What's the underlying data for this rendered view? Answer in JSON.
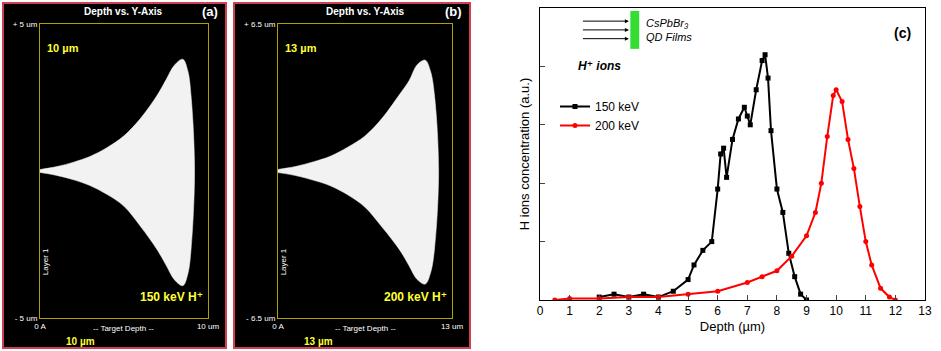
{
  "chart_data": [
    {
      "type": "trajectory",
      "panel": "(a)",
      "title": "Depth vs. Y-Axis",
      "scale_label": "10 µm",
      "ion_label": "150 keV H⁺",
      "layer_label": "Layer 1",
      "axis_label": "-- Target Depth --",
      "footer_label": "10 µm",
      "xlim": [
        0,
        10
      ],
      "ylim": [
        -5,
        5
      ],
      "xticks": [
        {
          "value": 0,
          "label": "0 A"
        },
        {
          "value": 10,
          "label": "10 um"
        }
      ],
      "yticks": [
        {
          "value": -5,
          "label": "- 5 um"
        },
        {
          "value": 5,
          "label": "+ 5 um"
        }
      ],
      "color": "#f2f2f2",
      "outline": {
        "x": [
          0,
          1,
          2,
          3,
          4,
          5,
          6,
          7,
          7.5,
          8,
          8.5,
          8.8,
          9.0,
          9.2,
          9.0,
          8.8,
          8.5,
          8,
          7.5,
          7,
          6,
          5,
          4,
          3,
          2,
          1,
          0
        ],
        "y": [
          0.05,
          0.15,
          0.3,
          0.5,
          0.8,
          1.2,
          1.8,
          2.6,
          3.1,
          3.6,
          3.8,
          3.4,
          2.5,
          0,
          -2.6,
          -3.5,
          -3.9,
          -3.7,
          -3.2,
          -2.7,
          -1.9,
          -1.2,
          -0.8,
          -0.5,
          -0.3,
          -0.15,
          -0.05
        ]
      }
    },
    {
      "type": "trajectory",
      "panel": "(b)",
      "title": "Depth vs. Y-Axis",
      "scale_label": "13 µm",
      "ion_label": "200 keV H⁺",
      "layer_label": "Layer 1",
      "axis_label": "-- Target Depth --",
      "footer_label": "13 µm",
      "xlim": [
        0,
        13
      ],
      "ylim": [
        -6.5,
        6.5
      ],
      "xticks": [
        {
          "value": 0,
          "label": "0 A"
        },
        {
          "value": 13,
          "label": "13 um"
        }
      ],
      "yticks": [
        {
          "value": -6.5,
          "label": "- 6.5 um"
        },
        {
          "value": 6.5,
          "label": "+ 6.5 um"
        }
      ],
      "color": "#f2f2f2",
      "outline": {
        "x": [
          0,
          1.3,
          2.6,
          3.9,
          5.2,
          6.5,
          7.8,
          9.1,
          9.8,
          10.4,
          11,
          11.4,
          11.7,
          12.0,
          11.7,
          11.4,
          11,
          10.4,
          9.8,
          9.1,
          7.8,
          6.5,
          5.2,
          3.9,
          2.6,
          1.3,
          0
        ],
        "y": [
          0.07,
          0.2,
          0.4,
          0.65,
          1.05,
          1.55,
          2.35,
          3.4,
          4.0,
          4.7,
          4.9,
          4.4,
          3.3,
          0,
          -3.4,
          -4.5,
          -5.0,
          -4.8,
          -4.2,
          -3.5,
          -2.5,
          -1.6,
          -1.05,
          -0.65,
          -0.4,
          -0.2,
          -0.07
        ]
      }
    },
    {
      "type": "line",
      "panel": "(c)",
      "x_label": "Depth (µm)",
      "y_label": "H ions concentration (a.u.)",
      "xlim": [
        0,
        13
      ],
      "xticks": [
        0,
        1,
        2,
        3,
        4,
        5,
        6,
        7,
        8,
        9,
        10,
        11,
        12,
        13
      ],
      "ylim": [
        0,
        1
      ],
      "yticks": [
        0,
        0.2,
        0.4,
        0.6,
        0.8,
        1
      ],
      "tick_labels": "x",
      "legend": "upper left",
      "inset": {
        "beam": "H⁺ ions",
        "film": [
          "CsPbBr₃",
          "QD Films"
        ],
        "color": "#33dd33"
      },
      "series": [
        {
          "name": "150 keV",
          "color": "#000000",
          "marker": "square",
          "x": [
            2.0,
            2.5,
            3.0,
            3.5,
            4.0,
            4.5,
            5.0,
            5.2,
            5.5,
            5.8,
            6.0,
            6.1,
            6.2,
            6.3,
            6.5,
            6.7,
            6.9,
            7.0,
            7.1,
            7.3,
            7.5,
            7.6,
            7.7,
            7.8,
            8.0,
            8.2,
            8.4,
            8.6,
            8.8,
            9.0
          ],
          "values": [
            0.01,
            0.02,
            0.01,
            0.02,
            0.01,
            0.03,
            0.07,
            0.12,
            0.17,
            0.2,
            0.38,
            0.5,
            0.52,
            0.42,
            0.55,
            0.62,
            0.66,
            0.63,
            0.6,
            0.72,
            0.82,
            0.84,
            0.76,
            0.58,
            0.38,
            0.3,
            0.16,
            0.08,
            0.02,
            0
          ]
        },
        {
          "name": "200 keV",
          "color": "#ff0000",
          "marker": "circle",
          "x": [
            0.5,
            1,
            2,
            3,
            4,
            5,
            6,
            7,
            7.5,
            8,
            8.5,
            9,
            9.3,
            9.5,
            9.7,
            9.9,
            10.0,
            10.2,
            10.4,
            10.6,
            10.8,
            11,
            11.2,
            11.5,
            11.8,
            12
          ],
          "values": [
            0,
            0.005,
            0.005,
            0.01,
            0.01,
            0.02,
            0.03,
            0.06,
            0.08,
            0.1,
            0.15,
            0.22,
            0.3,
            0.4,
            0.56,
            0.7,
            0.72,
            0.68,
            0.55,
            0.45,
            0.32,
            0.2,
            0.12,
            0.04,
            0.01,
            0
          ]
        }
      ]
    }
  ]
}
